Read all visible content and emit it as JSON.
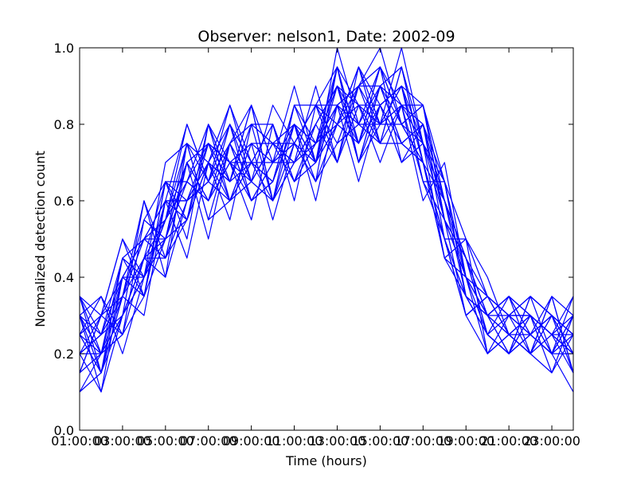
{
  "chart_data": {
    "type": "line",
    "title": "Observer: nelson1, Date: 2002-09",
    "xlabel": "Time (hours)",
    "ylabel": "Normalized detection count",
    "x_tick_labels": [
      "01:00:00",
      "03:00:00",
      "05:00:00",
      "07:00:00",
      "09:00:00",
      "11:00:00",
      "13:00:00",
      "15:00:00",
      "17:00:00",
      "19:00:00",
      "21:00:00",
      "23:00:00"
    ],
    "x_second_tick_labels": [
      "03:00:00",
      "05:00:00",
      "07:00:00",
      "09:00:00",
      "11:00:00",
      "13:00:00",
      "15:00:00",
      "17:00:00",
      "19:00:00",
      "21:00:00",
      "23:00:00"
    ],
    "y_ticks": [
      "0.0",
      "0.2",
      "0.4",
      "0.6",
      "0.8",
      "1.0"
    ],
    "x_hours": [
      1,
      2,
      3,
      4,
      5,
      6,
      7,
      8,
      9,
      10,
      11,
      12,
      13,
      14,
      15,
      16,
      17,
      18,
      19,
      20,
      21,
      22,
      23,
      24
    ],
    "xlim": [
      1,
      24
    ],
    "ylim": [
      0,
      1
    ],
    "grid": false,
    "line_color": "#0000ff",
    "series": [
      {
        "values": [
          0.25,
          0.15,
          0.35,
          0.45,
          0.55,
          0.7,
          0.75,
          0.6,
          0.7,
          0.65,
          0.8,
          0.7,
          0.85,
          0.9,
          0.95,
          0.8,
          0.7,
          0.5,
          0.35,
          0.3,
          0.25,
          0.3,
          0.25,
          0.15
        ]
      },
      {
        "values": [
          0.3,
          0.2,
          0.3,
          0.4,
          0.5,
          0.65,
          0.6,
          0.7,
          0.65,
          0.75,
          0.7,
          0.8,
          0.9,
          0.85,
          0.8,
          0.85,
          0.75,
          0.55,
          0.4,
          0.3,
          0.35,
          0.25,
          0.2,
          0.2
        ]
      },
      {
        "values": [
          0.2,
          0.3,
          0.4,
          0.35,
          0.6,
          0.55,
          0.7,
          0.8,
          0.6,
          0.7,
          0.75,
          0.65,
          0.95,
          0.7,
          0.9,
          0.75,
          0.8,
          0.6,
          0.45,
          0.25,
          0.2,
          0.35,
          0.3,
          0.25
        ]
      },
      {
        "values": [
          0.35,
          0.25,
          0.45,
          0.5,
          0.45,
          0.6,
          0.65,
          0.75,
          0.85,
          0.6,
          0.85,
          0.75,
          0.8,
          0.95,
          0.85,
          0.9,
          0.65,
          0.5,
          0.3,
          0.35,
          0.3,
          0.2,
          0.25,
          0.3
        ]
      },
      {
        "values": [
          0.15,
          0.2,
          0.25,
          0.55,
          0.65,
          0.5,
          0.8,
          0.65,
          0.7,
          0.8,
          0.65,
          0.7,
          1.0,
          0.8,
          0.75,
          0.95,
          0.7,
          0.45,
          0.5,
          0.4,
          0.25,
          0.3,
          0.2,
          0.1
        ]
      },
      {
        "values": [
          0.3,
          0.35,
          0.2,
          0.4,
          0.7,
          0.75,
          0.55,
          0.6,
          0.75,
          0.55,
          0.75,
          0.85,
          0.75,
          0.9,
          1.0,
          0.8,
          0.75,
          0.65,
          0.35,
          0.25,
          0.35,
          0.25,
          0.3,
          0.2
        ]
      },
      {
        "values": [
          0.2,
          0.1,
          0.3,
          0.45,
          0.4,
          0.6,
          0.75,
          0.7,
          0.6,
          0.65,
          0.8,
          0.6,
          0.85,
          0.65,
          0.85,
          0.9,
          0.85,
          0.55,
          0.45,
          0.3,
          0.2,
          0.3,
          0.15,
          0.25
        ]
      },
      {
        "values": [
          0.25,
          0.3,
          0.5,
          0.4,
          0.55,
          0.8,
          0.65,
          0.85,
          0.7,
          0.6,
          0.7,
          0.9,
          0.7,
          0.85,
          0.7,
          0.85,
          0.6,
          0.7,
          0.4,
          0.3,
          0.3,
          0.25,
          0.35,
          0.3
        ]
      },
      {
        "values": [
          0.1,
          0.2,
          0.35,
          0.3,
          0.6,
          0.45,
          0.7,
          0.55,
          0.8,
          0.75,
          0.65,
          0.75,
          0.9,
          0.75,
          0.95,
          0.7,
          0.8,
          0.5,
          0.3,
          0.2,
          0.25,
          0.2,
          0.3,
          0.15
        ]
      },
      {
        "values": [
          0.35,
          0.15,
          0.4,
          0.5,
          0.5,
          0.7,
          0.5,
          0.75,
          0.65,
          0.85,
          0.75,
          0.65,
          0.8,
          0.9,
          0.8,
          1.0,
          0.75,
          0.6,
          0.45,
          0.35,
          0.3,
          0.35,
          0.2,
          0.25
        ]
      },
      {
        "values": [
          0.2,
          0.25,
          0.3,
          0.6,
          0.45,
          0.55,
          0.8,
          0.6,
          0.75,
          0.7,
          0.9,
          0.7,
          0.95,
          0.7,
          0.9,
          0.75,
          0.7,
          0.45,
          0.4,
          0.25,
          0.2,
          0.3,
          0.25,
          0.35
        ]
      },
      {
        "values": [
          0.3,
          0.2,
          0.45,
          0.35,
          0.65,
          0.65,
          0.6,
          0.7,
          0.55,
          0.8,
          0.6,
          0.85,
          0.7,
          0.95,
          0.75,
          0.85,
          0.85,
          0.65,
          0.35,
          0.3,
          0.35,
          0.2,
          0.3,
          0.2
        ]
      },
      {
        "values": [
          0.15,
          0.3,
          0.25,
          0.45,
          0.5,
          0.75,
          0.7,
          0.65,
          0.85,
          0.6,
          0.8,
          0.75,
          0.85,
          0.8,
          0.95,
          0.8,
          0.7,
          0.5,
          0.5,
          0.35,
          0.25,
          0.25,
          0.2,
          0.3
        ]
      },
      {
        "values": [
          0.25,
          0.15,
          0.35,
          0.5,
          0.6,
          0.6,
          0.65,
          0.8,
          0.65,
          0.75,
          0.7,
          0.8,
          0.9,
          0.7,
          0.8,
          0.9,
          0.75,
          0.6,
          0.35,
          0.25,
          0.3,
          0.3,
          0.25,
          0.2
        ]
      },
      {
        "values": [
          0.3,
          0.25,
          0.4,
          0.4,
          0.55,
          0.65,
          0.75,
          0.7,
          0.7,
          0.65,
          0.85,
          0.7,
          0.8,
          0.85,
          0.85,
          0.75,
          0.8,
          0.55,
          0.45,
          0.3,
          0.2,
          0.35,
          0.3,
          0.25
        ]
      },
      {
        "values": [
          0.2,
          0.2,
          0.3,
          0.45,
          0.45,
          0.7,
          0.6,
          0.75,
          0.6,
          0.7,
          0.75,
          0.85,
          0.95,
          0.75,
          0.9,
          0.85,
          0.65,
          0.65,
          0.4,
          0.2,
          0.3,
          0.25,
          0.2,
          0.3
        ]
      },
      {
        "values": [
          0.35,
          0.3,
          0.35,
          0.55,
          0.5,
          0.55,
          0.7,
          0.65,
          0.8,
          0.8,
          0.65,
          0.75,
          0.85,
          0.9,
          0.75,
          0.95,
          0.7,
          0.5,
          0.3,
          0.35,
          0.25,
          0.2,
          0.35,
          0.15
        ]
      },
      {
        "values": [
          0.1,
          0.15,
          0.45,
          0.4,
          0.6,
          0.8,
          0.65,
          0.6,
          0.7,
          0.7,
          0.8,
          0.65,
          0.75,
          0.8,
          0.9,
          0.8,
          0.85,
          0.6,
          0.45,
          0.3,
          0.35,
          0.3,
          0.25,
          0.25
        ]
      },
      {
        "values": [
          0.25,
          0.35,
          0.25,
          0.35,
          0.65,
          0.6,
          0.7,
          0.85,
          0.65,
          0.6,
          0.7,
          0.8,
          0.9,
          0.7,
          0.85,
          0.7,
          0.75,
          0.45,
          0.35,
          0.25,
          0.2,
          0.25,
          0.2,
          0.35
        ]
      },
      {
        "values": [
          0.3,
          0.1,
          0.4,
          0.5,
          0.55,
          0.65,
          0.8,
          0.7,
          0.75,
          0.75,
          0.75,
          0.7,
          0.8,
          0.95,
          0.8,
          0.9,
          0.65,
          0.55,
          0.4,
          0.35,
          0.3,
          0.35,
          0.3,
          0.2
        ]
      },
      {
        "values": [
          0.2,
          0.25,
          0.35,
          0.6,
          0.4,
          0.75,
          0.55,
          0.75,
          0.6,
          0.65,
          0.85,
          0.85,
          0.85,
          0.75,
          0.95,
          0.85,
          0.8,
          0.65,
          0.5,
          0.2,
          0.25,
          0.2,
          0.15,
          0.3
        ]
      },
      {
        "values": [
          0.35,
          0.2,
          0.3,
          0.45,
          0.65,
          0.55,
          0.75,
          0.65,
          0.85,
          0.7,
          0.7,
          0.75,
          0.95,
          0.85,
          0.75,
          0.75,
          0.7,
          0.5,
          0.35,
          0.3,
          0.35,
          0.3,
          0.25,
          0.2
        ]
      },
      {
        "values": [
          0.15,
          0.3,
          0.5,
          0.35,
          0.5,
          0.7,
          0.6,
          0.8,
          0.7,
          0.8,
          0.65,
          0.8,
          0.7,
          0.9,
          0.9,
          0.95,
          0.75,
          0.6,
          0.45,
          0.25,
          0.2,
          0.25,
          0.3,
          0.25
        ]
      },
      {
        "values": [
          0.25,
          0.2,
          0.4,
          0.5,
          0.6,
          0.6,
          0.7,
          0.6,
          0.65,
          0.75,
          0.8,
          0.7,
          0.9,
          0.8,
          0.8,
          0.8,
          0.85,
          0.55,
          0.3,
          0.35,
          0.3,
          0.3,
          0.2,
          0.3
        ]
      },
      {
        "values": [
          0.3,
          0.15,
          0.3,
          0.4,
          0.55,
          0.75,
          0.65,
          0.75,
          0.8,
          0.6,
          0.75,
          0.85,
          0.8,
          0.75,
          0.85,
          0.9,
          0.7,
          0.6,
          0.4,
          0.3,
          0.25,
          0.2,
          0.35,
          0.15
        ]
      }
    ]
  }
}
